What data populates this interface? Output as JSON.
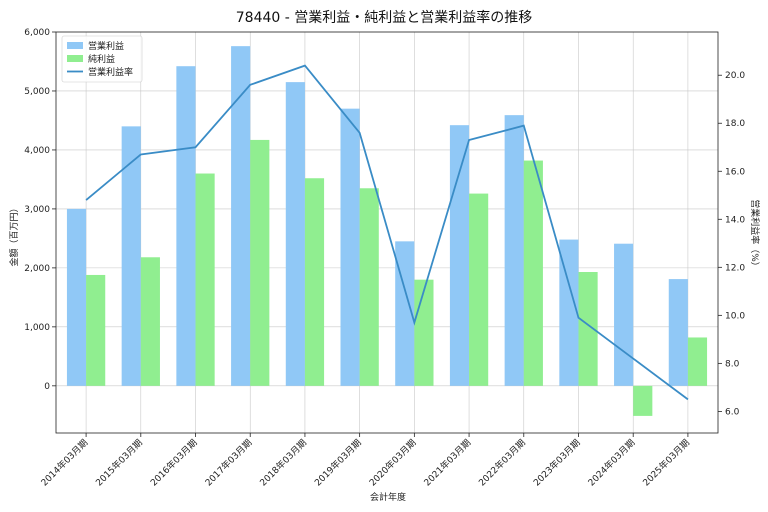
{
  "chart_data": {
    "type": "bar",
    "title": "78440 - 営業利益・純利益と営業利益率の推移",
    "xlabel": "会計年度",
    "ylabel": "金額（百万円）",
    "y2label": "営業利益率（%）",
    "categories": [
      "2014年03月期",
      "2015年03月期",
      "2016年03月期",
      "2017年03月期",
      "2018年03月期",
      "2019年03月期",
      "2020年03月期",
      "2021年03月期",
      "2022年03月期",
      "2023年03月期",
      "2024年03月期",
      "2025年03月期"
    ],
    "series": [
      {
        "name": "営業利益",
        "type": "bar",
        "axis": "left",
        "color": "#90c8f6",
        "values": [
          3000,
          4400,
          5420,
          5760,
          5150,
          4700,
          2450,
          4420,
          4590,
          2480,
          2410,
          1810
        ]
      },
      {
        "name": "純利益",
        "type": "bar",
        "axis": "left",
        "color": "#90ee90",
        "values": [
          1880,
          2180,
          3600,
          4170,
          3520,
          3350,
          1800,
          3260,
          3820,
          1930,
          -510,
          820
        ]
      },
      {
        "name": "営業利益率",
        "type": "line",
        "axis": "right",
        "color": "#3a8cc6",
        "values": [
          14.8,
          16.7,
          17.0,
          19.6,
          20.4,
          17.6,
          9.7,
          17.3,
          17.9,
          9.9,
          8.2,
          6.5
        ]
      }
    ],
    "ylim": [
      -800,
      6000
    ],
    "y_ticks": [
      0,
      1000,
      2000,
      3000,
      4000,
      5000,
      6000
    ],
    "y_tick_labels": [
      "0",
      "1,000",
      "2,000",
      "3,000",
      "4,000",
      "5,000",
      "6,000"
    ],
    "y2lim": [
      5.1,
      21.8
    ],
    "y2_ticks": [
      6,
      8,
      10,
      12,
      14,
      16,
      18,
      20
    ],
    "y2_tick_labels": [
      "6.0",
      "8.0",
      "10.0",
      "12.0",
      "14.0",
      "16.0",
      "18.0",
      "20.0"
    ],
    "grid": true,
    "legend_position": "top-left"
  }
}
